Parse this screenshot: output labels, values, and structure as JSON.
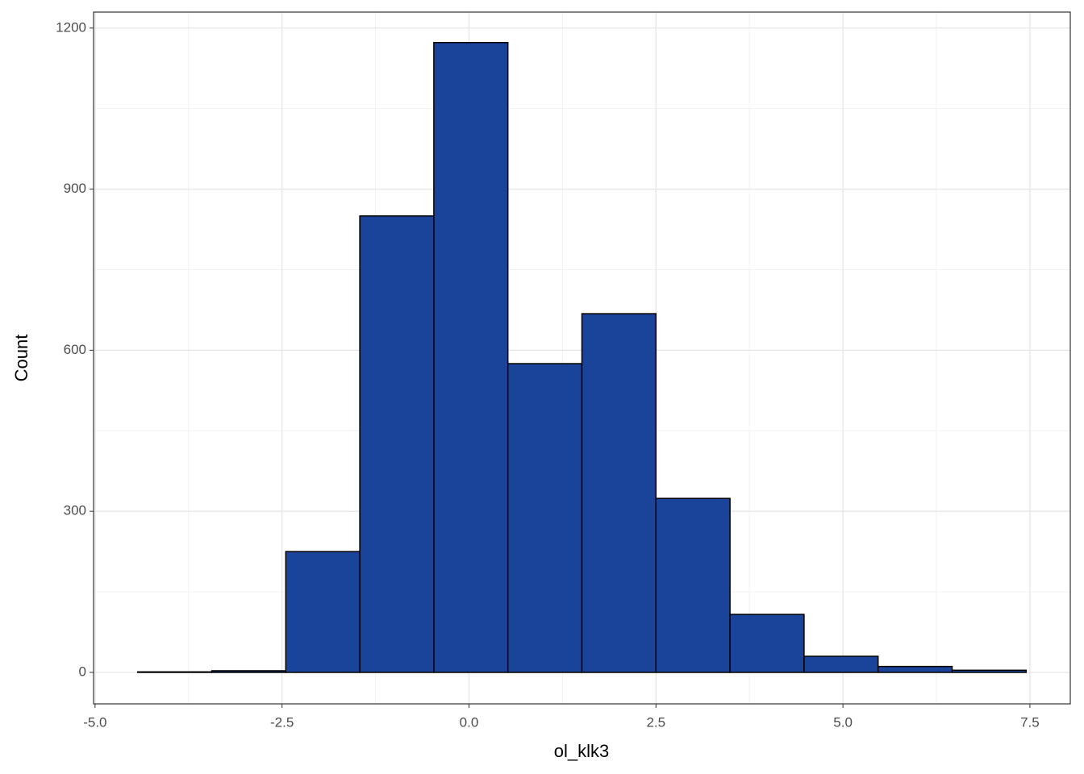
{
  "chart_data": {
    "type": "histogram",
    "x_label": "ol_klk3",
    "y_label": "Count",
    "bins": [
      -4.43,
      -3.44,
      -2.45,
      -1.46,
      -0.47,
      0.52,
      1.51,
      2.5,
      3.49,
      4.48,
      5.47,
      6.46,
      7.45
    ],
    "values": [
      1,
      3,
      225,
      850,
      1173,
      575,
      668,
      324,
      108,
      30,
      11,
      4
    ],
    "color": "#1a4499",
    "xlim": [
      -5.02,
      8.04
    ],
    "ylim": [
      -58.6,
      1229.7
    ],
    "xticks": [
      {
        "value": -5,
        "label": "-5.0"
      },
      {
        "value": -2.5,
        "label": "-2.5"
      },
      {
        "value": 0,
        "label": "0.0"
      },
      {
        "value": 2.5,
        "label": "2.5"
      },
      {
        "value": 5,
        "label": "5.0"
      },
      {
        "value": 7.5,
        "label": "7.5"
      }
    ],
    "yticks": [
      0,
      300,
      600,
      900,
      1200
    ],
    "grid": true
  }
}
